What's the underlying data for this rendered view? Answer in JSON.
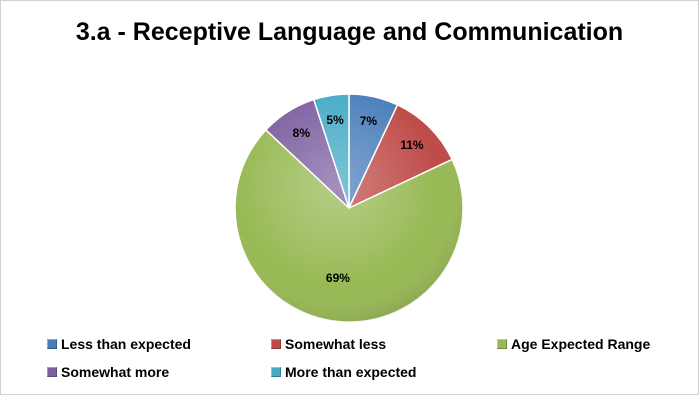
{
  "chart_data": {
    "type": "pie",
    "title": "3.a - Receptive Language and Communication",
    "slices": [
      {
        "label": "Less than expected",
        "value": 7,
        "display": "7%",
        "color": "#4a7ebb"
      },
      {
        "label": "Somewhat less",
        "value": 11,
        "display": "11%",
        "color": "#be4b48"
      },
      {
        "label": "Age Expected Range",
        "value": 69,
        "display": "69%",
        "color": "#98b954"
      },
      {
        "label": "Somewhat more",
        "value": 8,
        "display": "8%",
        "color": "#7d60a0"
      },
      {
        "label": "More than expected",
        "value": 5,
        "display": "5%",
        "color": "#46aac5"
      }
    ],
    "legend": "bottom"
  }
}
